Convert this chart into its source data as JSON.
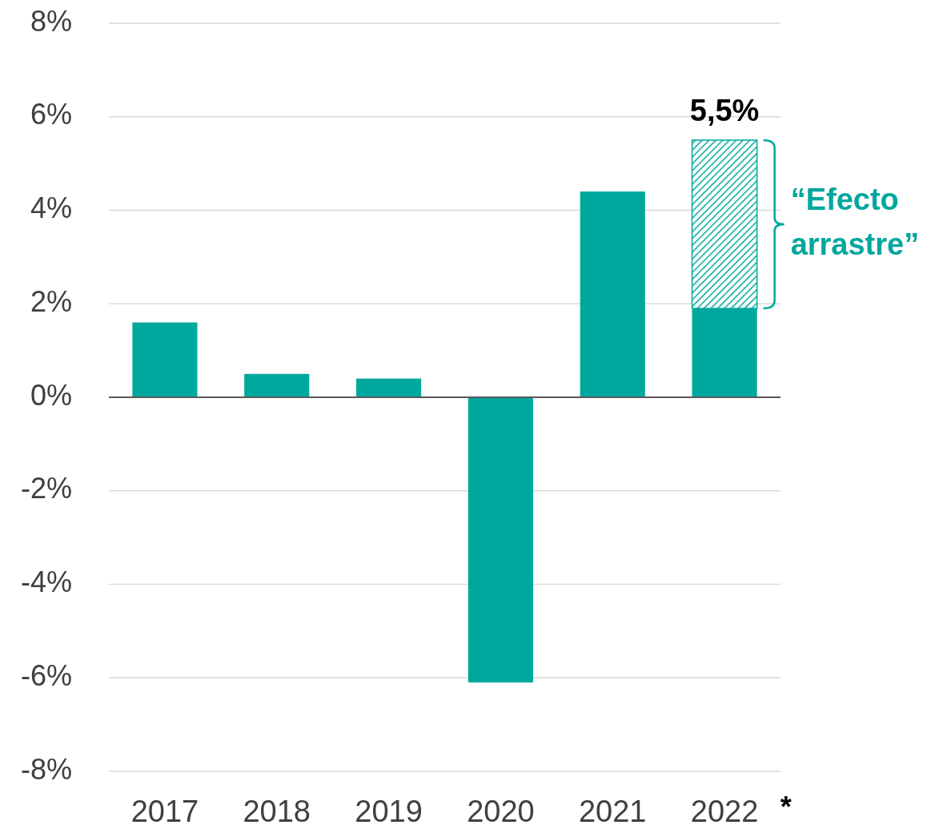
{
  "chart_data": {
    "type": "bar",
    "stacked": true,
    "categories": [
      "2017",
      "2018",
      "2019",
      "2020",
      "2021",
      "2022"
    ],
    "series": [
      {
        "color": "#00a79d",
        "values": [
          1.6,
          0.5,
          0.4,
          -6.1,
          4.4,
          1.9
        ]
      },
      {
        "color": "#00a79d",
        "values": [
          null,
          null,
          null,
          null,
          null,
          3.6
        ]
      }
    ],
    "totals": [
      null,
      null,
      null,
      null,
      null,
      "5,5%"
    ],
    "ylim": [
      -8,
      8
    ],
    "yticks": [
      {
        "value": -8,
        "label": "-8%"
      },
      {
        "value": -6,
        "label": "-6%"
      },
      {
        "value": -4,
        "label": "-4%"
      },
      {
        "value": -2,
        "label": "-2%"
      },
      {
        "value": 0,
        "label": "0%"
      },
      {
        "value": 2,
        "label": "2%"
      },
      {
        "value": 4,
        "label": "4%"
      },
      {
        "value": 6,
        "label": "6%"
      },
      {
        "value": 8,
        "label": "8%"
      }
    ],
    "grid": "y",
    "annotations": [
      "“Efecto arrastre”",
      "*"
    ]
  }
}
